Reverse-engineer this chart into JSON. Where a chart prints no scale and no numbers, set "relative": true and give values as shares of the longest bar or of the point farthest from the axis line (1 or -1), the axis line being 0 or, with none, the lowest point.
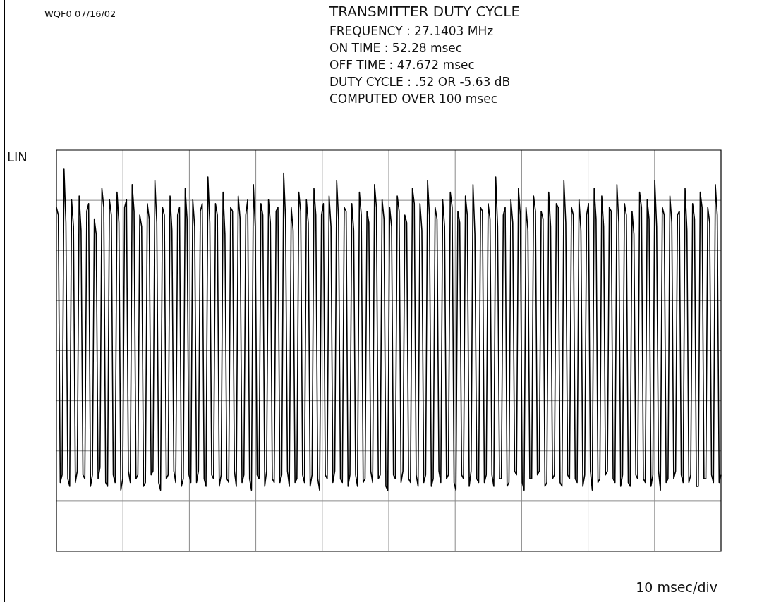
{
  "chart_data": {
    "type": "line",
    "title": "TRANSMITTER DUTY CYCLE",
    "ylabel": "LIN",
    "xlabel": "10 msec/div",
    "annotations": [
      "WQF0 07/16/02",
      "FREQUENCY : 27.1403 MHz",
      "ON TIME : 52.28 msec",
      "OFF TIME : 47.672 msec",
      "DUTY CYCLE : .52 OR -5.63 dB",
      "COMPUTED OVER 100 msec"
    ],
    "relative": true,
    "grid": true,
    "marker": "none",
    "line_style": "solid",
    "color": "#000000",
    "categories": [
      null,
      null,
      null,
      null,
      null,
      null,
      null,
      null,
      null,
      null,
      null,
      null,
      null,
      null,
      null,
      null,
      null,
      null,
      null,
      null,
      null,
      null,
      null,
      null,
      null,
      null,
      null,
      null,
      null,
      null,
      null,
      null,
      null,
      null,
      null,
      null,
      null,
      null,
      null,
      null,
      null,
      null,
      null,
      null,
      null,
      null,
      null,
      null,
      null,
      null,
      null,
      null,
      null,
      null,
      null,
      null,
      null,
      null,
      null,
      null,
      null,
      null,
      null,
      null,
      null,
      null,
      null,
      null,
      null,
      null,
      null,
      null,
      null,
      null,
      null,
      null,
      null,
      null,
      null,
      null,
      null,
      null,
      null,
      null,
      null,
      null,
      null,
      null,
      null,
      null,
      null,
      null,
      null,
      null,
      null,
      null,
      null,
      null,
      null,
      null,
      null,
      null,
      null,
      null,
      null,
      null,
      null,
      null,
      null,
      null,
      null,
      null,
      null,
      null,
      null,
      null,
      null,
      null,
      null,
      null,
      null,
      null,
      null,
      null,
      null,
      null,
      null,
      null,
      null,
      null,
      null,
      null,
      null,
      null,
      null,
      null,
      null,
      null,
      null,
      null,
      null,
      null,
      null,
      null,
      null,
      null,
      null,
      null,
      null,
      null,
      null,
      null,
      null,
      null,
      null,
      null,
      null,
      null,
      null,
      null,
      null,
      null,
      null,
      null,
      null,
      null,
      null,
      null,
      null,
      null,
      null,
      null,
      null,
      null,
      null,
      null,
      null,
      null,
      null,
      null,
      null,
      null,
      null,
      null,
      null,
      null,
      null,
      null,
      null,
      null,
      null,
      null,
      null,
      null,
      null,
      null,
      null,
      null,
      null,
      null,
      null,
      null,
      null,
      null,
      null,
      null,
      null,
      null,
      null,
      null,
      null,
      null,
      null,
      null,
      null,
      null,
      null,
      null,
      null,
      null,
      null,
      null,
      null,
      null,
      null,
      null,
      null,
      null,
      null,
      null,
      null,
      null,
      null,
      null,
      null,
      null,
      null,
      null,
      null,
      null,
      null,
      null,
      null,
      null,
      null,
      null,
      null,
      null,
      null,
      null,
      null,
      null,
      null,
      null,
      null,
      null,
      null,
      null,
      null,
      null,
      null,
      null,
      null,
      null,
      null,
      null,
      null,
      null,
      null,
      null,
      null,
      null,
      null,
      null,
      null,
      null,
      null,
      null,
      null,
      null,
      null,
      null,
      null,
      null,
      null,
      null,
      null,
      null,
      null,
      null,
      null,
      null,
      null,
      null,
      null,
      null,
      null,
      null,
      null,
      null,
      null,
      null,
      null,
      null,
      null,
      null,
      null,
      null,
      null,
      null,
      null,
      null,
      null,
      null,
      null,
      null,
      null,
      null,
      null,
      null,
      null,
      null,
      null,
      null,
      null,
      null,
      null,
      null,
      null,
      null,
      null,
      null,
      null,
      null,
      null,
      null,
      null,
      null,
      null,
      null,
      null,
      null,
      null,
      null,
      null,
      null,
      null,
      null,
      null,
      null,
      null,
      null
    ],
    "values": [
      0.9,
      0.88,
      0.18,
      0.2,
      1.0,
      0.86,
      0.19,
      0.17,
      0.92,
      0.85,
      0.18,
      0.21,
      0.93,
      0.84,
      0.2,
      0.19,
      0.89,
      0.91,
      0.17,
      0.2,
      0.87,
      0.83,
      0.19,
      0.22,
      0.95,
      0.9,
      0.18,
      0.17,
      0.92,
      0.88,
      0.2,
      0.18,
      0.94,
      0.86,
      0.16,
      0.19,
      0.9,
      0.92,
      0.21,
      0.18,
      0.96,
      0.89,
      0.19,
      0.2,
      0.88,
      0.85,
      0.17,
      0.18,
      0.91,
      0.87,
      0.2,
      0.21,
      0.97,
      0.86,
      0.18,
      0.16,
      0.9,
      0.88,
      0.19,
      0.2,
      0.93,
      0.84,
      0.21,
      0.18,
      0.88,
      0.9,
      0.17,
      0.19,
      0.95,
      0.87,
      0.2,
      0.18,
      0.92,
      0.85,
      0.18,
      0.21,
      0.89,
      0.91,
      0.19,
      0.17,
      0.98,
      0.86,
      0.2,
      0.19,
      0.91,
      0.88,
      0.17,
      0.2,
      0.94,
      0.83,
      0.19,
      0.18,
      0.9,
      0.89,
      0.21,
      0.17,
      0.93,
      0.87,
      0.18,
      0.2,
      0.88,
      0.92,
      0.19,
      0.16,
      0.96,
      0.85,
      0.2,
      0.19,
      0.91,
      0.88,
      0.17,
      0.21,
      0.92,
      0.86,
      0.19,
      0.18,
      0.89,
      0.9,
      0.18,
      0.2,
      0.99,
      0.87,
      0.21,
      0.17,
      0.9,
      0.84,
      0.18,
      0.19,
      0.94,
      0.89,
      0.2,
      0.18,
      0.92,
      0.86,
      0.17,
      0.2,
      0.95,
      0.88,
      0.19,
      0.16,
      0.88,
      0.91,
      0.2,
      0.19,
      0.93,
      0.85,
      0.18,
      0.21,
      0.97,
      0.87,
      0.19,
      0.18,
      0.9,
      0.89,
      0.17,
      0.2,
      0.91,
      0.84,
      0.2,
      0.17,
      0.94,
      0.88,
      0.18,
      0.19,
      0.89,
      0.86,
      0.21,
      0.18,
      0.96,
      0.9,
      0.19,
      0.2,
      0.92,
      0.87,
      0.17,
      0.16,
      0.9,
      0.85,
      0.2,
      0.19,
      0.93,
      0.89,
      0.18,
      0.21,
      0.88,
      0.86,
      0.19,
      0.18,
      0.95,
      0.91,
      0.2,
      0.17,
      0.91,
      0.84,
      0.18,
      0.2,
      0.97,
      0.88,
      0.17,
      0.19,
      0.9,
      0.87,
      0.21,
      0.18,
      0.92,
      0.85,
      0.19,
      0.2,
      0.94,
      0.9,
      0.18,
      0.16,
      0.89,
      0.86,
      0.2,
      0.19,
      0.93,
      0.88,
      0.17,
      0.21,
      0.96,
      0.83,
      0.19,
      0.18,
      0.9,
      0.89,
      0.18,
      0.2,
      0.91,
      0.87,
      0.2,
      0.17,
      0.98,
      0.85,
      0.19,
      0.19,
      0.88,
      0.9,
      0.17,
      0.18,
      0.92,
      0.86,
      0.21,
      0.2,
      0.95,
      0.88,
      0.18,
      0.16,
      0.9,
      0.84,
      0.19,
      0.19,
      0.93,
      0.89,
      0.2,
      0.21,
      0.89,
      0.87,
      0.17,
      0.18,
      0.94,
      0.85,
      0.19,
      0.2,
      0.91,
      0.9,
      0.18,
      0.17,
      0.97,
      0.86,
      0.2,
      0.19,
      0.9,
      0.88,
      0.19,
      0.18,
      0.92,
      0.84,
      0.17,
      0.2,
      0.88,
      0.91,
      0.21,
      0.16,
      0.95,
      0.87,
      0.18,
      0.19,
      0.93,
      0.85,
      0.2,
      0.21,
      0.9,
      0.89,
      0.19,
      0.18,
      0.96,
      0.86,
      0.17,
      0.2,
      0.91,
      0.88,
      0.18,
      0.17,
      0.89,
      0.83,
      0.2,
      0.19,
      0.94,
      0.9,
      0.19,
      0.18,
      0.92,
      0.87,
      0.17,
      0.2,
      0.97,
      0.85,
      0.21,
      0.16,
      0.9,
      0.88,
      0.18,
      0.19,
      0.93,
      0.86,
      0.19,
      0.21,
      0.88,
      0.89,
      0.2,
      0.18,
      0.95,
      0.84,
      0.18,
      0.2,
      0.91,
      0.87,
      0.17,
      0.17,
      0.94,
      0.9,
      0.19,
      0.19,
      0.9,
      0.86,
      0.2,
      0.18,
      0.96,
      0.88,
      0.18,
      0.2
    ]
  }
}
